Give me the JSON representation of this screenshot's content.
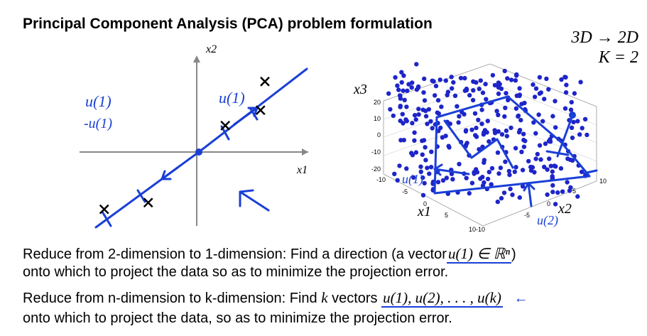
{
  "title": "Principal Component Analysis (PCA) problem formulation",
  "dim_note": {
    "line1": "3D → 2D",
    "line2": "K = 2"
  },
  "plot2d": {
    "x_axis_label": "x1",
    "y_axis_label": "x2",
    "handwritten": {
      "u1_left": "u(1)",
      "neg_u1": "-u(1)",
      "u1_right": "u(1)"
    },
    "data_points": [
      [
        -4.3,
        -2.6
      ],
      [
        -2.3,
        -2.3
      ],
      [
        1.2,
        1.2
      ],
      [
        2.8,
        1.9
      ],
      [
        3.0,
        3.2
      ]
    ]
  },
  "plot3d": {
    "axis_labels": {
      "x1": "x1",
      "x2": "x2",
      "x3": "x3"
    },
    "z_ticks": [
      "20",
      "10",
      "0",
      "-10",
      "-20"
    ],
    "x1_ticks": [
      "-10",
      "-5",
      "0",
      "5",
      "10"
    ],
    "x2_ticks": [
      "-10",
      "-5",
      "0",
      "5",
      "10"
    ],
    "handwritten": {
      "u1": "u(1)",
      "u2": "u(2)"
    }
  },
  "body": {
    "line1_text": "Reduce from 2-dimension to 1-dimension: Find a direction (a vector",
    "line1_math": "u(1) ∈ ℝⁿ",
    "line1_end": ")",
    "line2_text": "onto which to project the data so as to minimize the projection error.",
    "line3_text_a": "Reduce from n-dimension to k-dimension: Find",
    "line3_k": "k",
    "line3_text_b": "vectors",
    "line3_math": "u(1), u(2), . . . , u(k)",
    "line3_arrow": "←",
    "line4_text": "onto which to project the data, so as to minimize the projection error."
  }
}
